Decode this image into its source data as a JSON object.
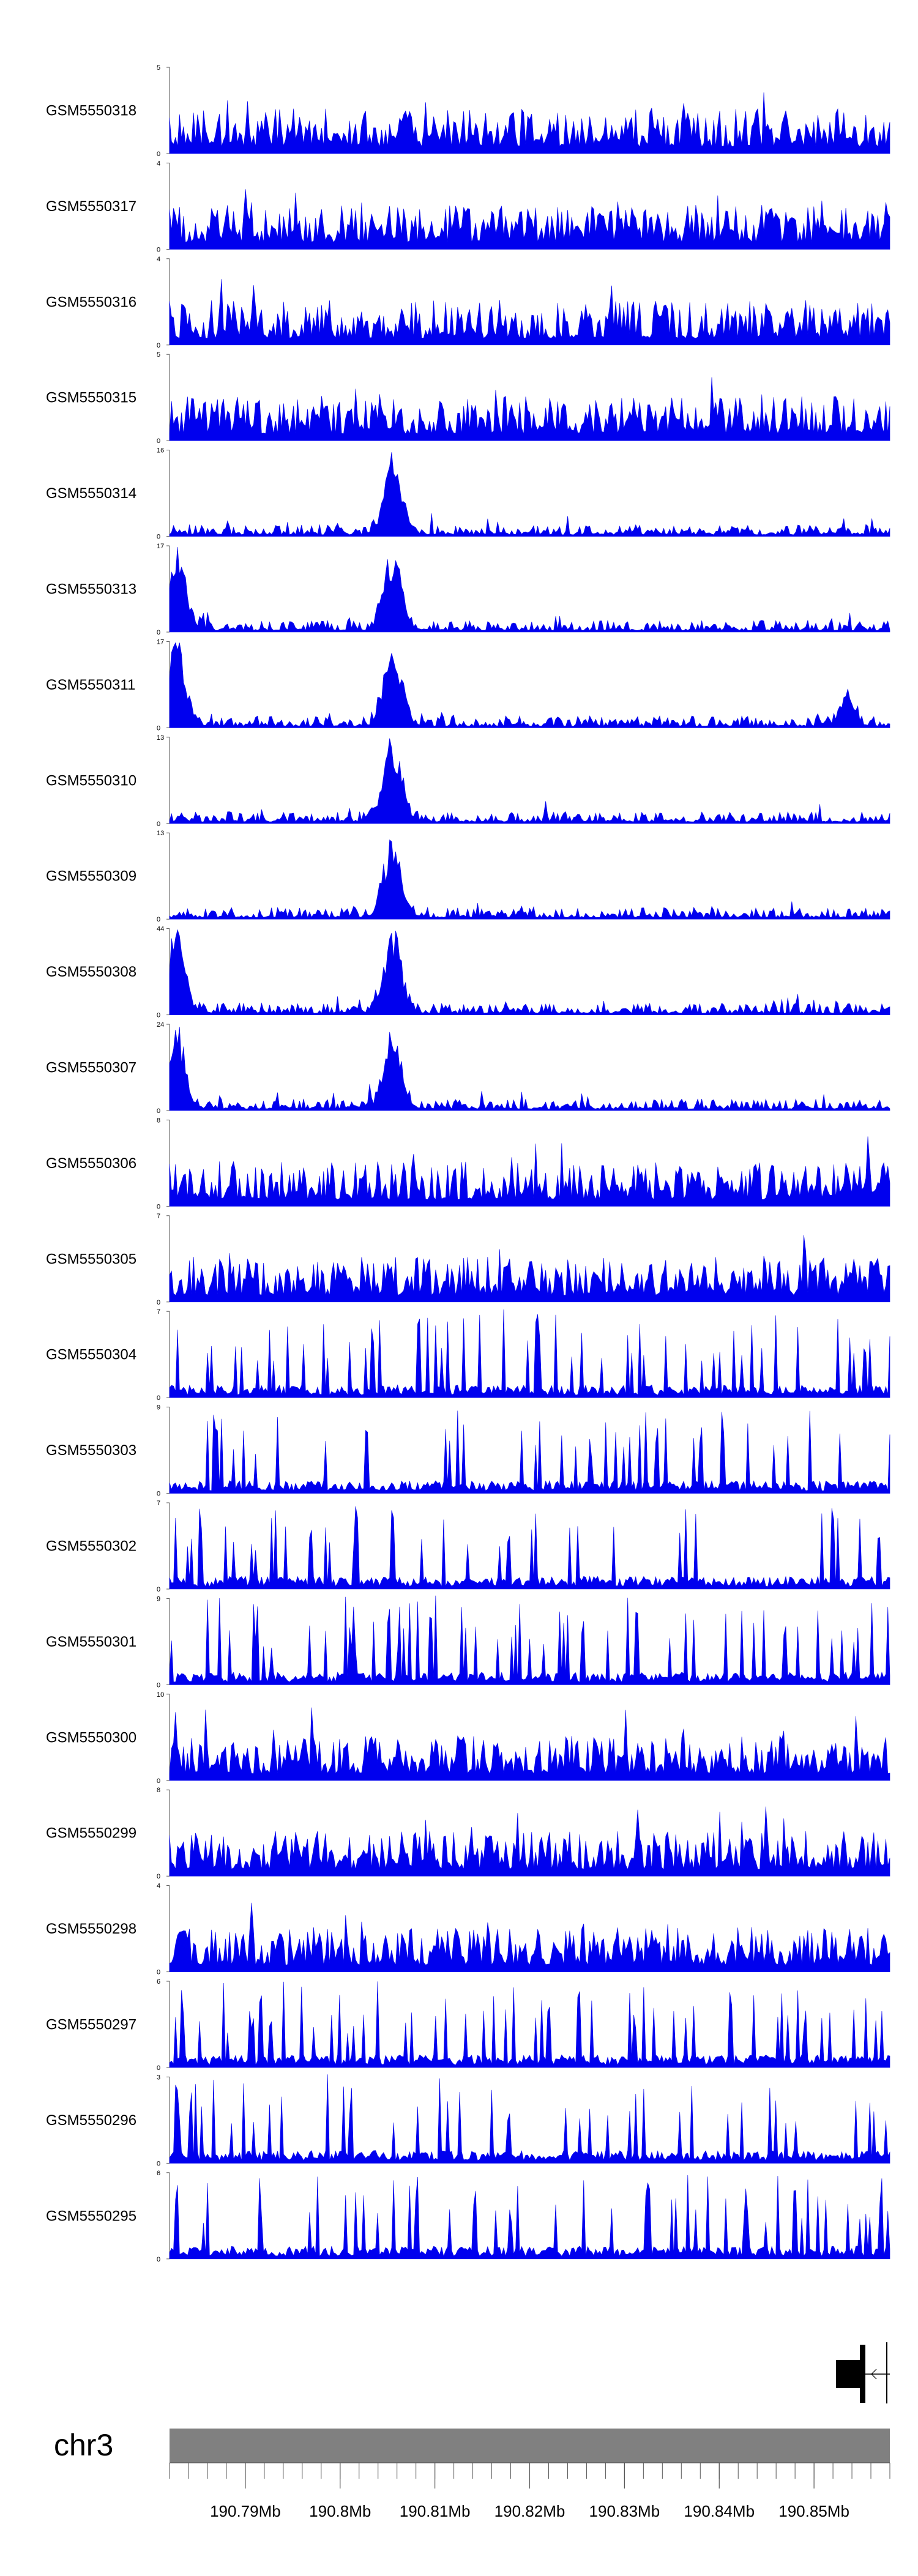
{
  "chart_data": {
    "type": "area",
    "fill_color": "#0000ee",
    "ideogram_color": "#808080",
    "chromosome": "chr3",
    "x_range": [
      190.782,
      190.858
    ],
    "x_unit": "Mb",
    "x_ticks": [
      190.79,
      190.8,
      190.81,
      190.82,
      190.83,
      190.84,
      190.85
    ],
    "x_tick_labels": [
      "190.79Mb",
      "190.8Mb",
      "190.81Mb",
      "190.82Mb",
      "190.83Mb",
      "190.84Mb",
      "190.85Mb"
    ],
    "tracks": [
      {
        "name": "GSM5550318",
        "ymax": 5,
        "profile": "noisy"
      },
      {
        "name": "GSM5550317",
        "ymax": 4,
        "profile": "noisy"
      },
      {
        "name": "GSM5550316",
        "ymax": 4,
        "profile": "noisy"
      },
      {
        "name": "GSM5550315",
        "ymax": 5,
        "profile": "noisy"
      },
      {
        "name": "GSM5550314",
        "ymax": 16,
        "profile": "peak_center"
      },
      {
        "name": "GSM5550313",
        "ymax": 17,
        "profile": "peak_left_center"
      },
      {
        "name": "GSM5550311",
        "ymax": 17,
        "profile": "peak_left_center_right"
      },
      {
        "name": "GSM5550310",
        "ymax": 13,
        "profile": "peak_center"
      },
      {
        "name": "GSM5550309",
        "ymax": 13,
        "profile": "peak_center"
      },
      {
        "name": "GSM5550308",
        "ymax": 44,
        "profile": "peak_left_center"
      },
      {
        "name": "GSM5550307",
        "ymax": 24,
        "profile": "peak_left_center"
      },
      {
        "name": "GSM5550306",
        "ymax": 8,
        "profile": "noisy"
      },
      {
        "name": "GSM5550305",
        "ymax": 7,
        "profile": "noisy"
      },
      {
        "name": "GSM5550304",
        "ymax": 7,
        "profile": "spiky"
      },
      {
        "name": "GSM5550303",
        "ymax": 9,
        "profile": "spiky"
      },
      {
        "name": "GSM5550302",
        "ymax": 7,
        "profile": "spiky"
      },
      {
        "name": "GSM5550301",
        "ymax": 9,
        "profile": "spiky"
      },
      {
        "name": "GSM5550300",
        "ymax": 10,
        "profile": "noisy"
      },
      {
        "name": "GSM5550299",
        "ymax": 8,
        "profile": "noisy"
      },
      {
        "name": "GSM5550298",
        "ymax": 4,
        "profile": "noisy"
      },
      {
        "name": "GSM5550297",
        "ymax": 6,
        "profile": "spiky"
      },
      {
        "name": "GSM5550296",
        "ymax": 3,
        "profile": "spiky"
      },
      {
        "name": "GSM5550295",
        "ymax": 6,
        "profile": "spiky"
      }
    ],
    "ytick_min": 0,
    "gene_strand": "minus"
  }
}
